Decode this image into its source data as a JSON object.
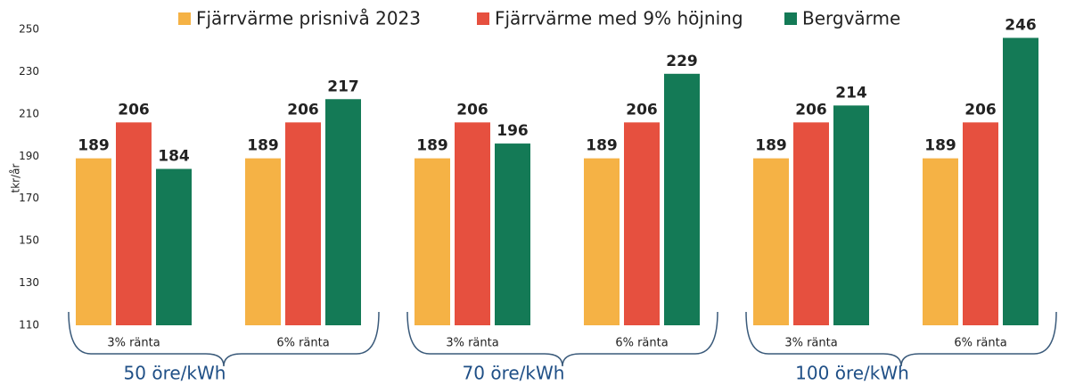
{
  "chart_data": {
    "type": "bar",
    "categories": [
      "3% ränta",
      "6% ränta",
      "3% ränta",
      "6% ränta",
      "3% ränta",
      "6% ränta"
    ],
    "groups": [
      "50 öre/kWh",
      "70 öre/kWh",
      "100 öre/kWh"
    ],
    "ylabel": "tkr/år",
    "series": [
      {
        "name": "Fjärrvärme prisnivå 2023",
        "color": "#f5b245",
        "values": [
          189,
          189,
          189,
          189,
          189,
          189
        ]
      },
      {
        "name": "Fjärrvärme med 9% höjning",
        "color": "#e6503f",
        "values": [
          206,
          206,
          206,
          206,
          206,
          206
        ]
      },
      {
        "name": "Bergvärme",
        "color": "#147a56",
        "values": [
          184,
          217,
          196,
          229,
          214,
          246
        ]
      }
    ],
    "ylim": [
      110,
      250
    ],
    "yticks": [
      110,
      130,
      150,
      170,
      190,
      210,
      230,
      250
    ],
    "grid": false
  }
}
